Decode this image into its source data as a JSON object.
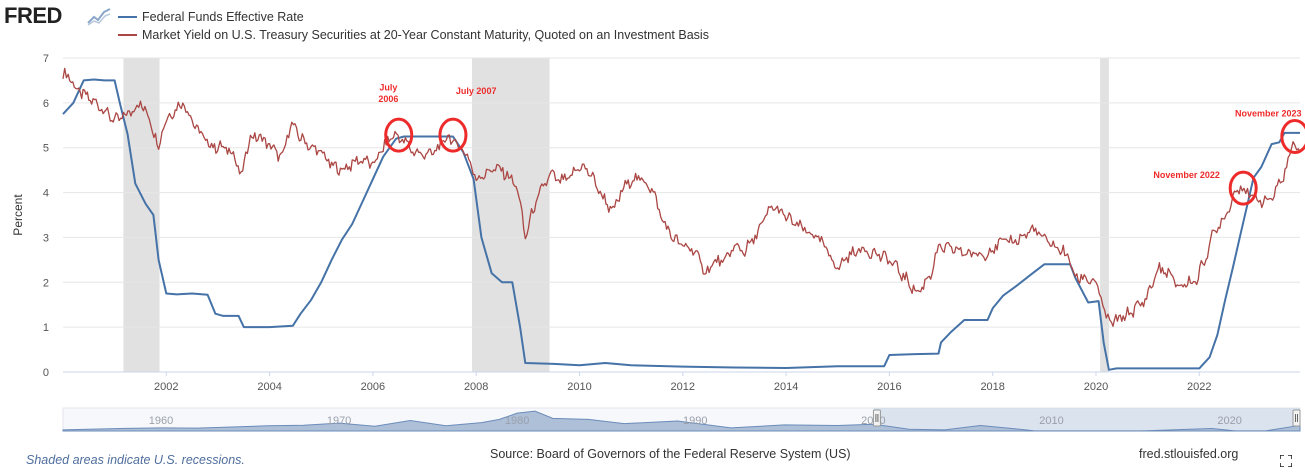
{
  "header": {
    "logo_text": "FRED",
    "logo_icon": "chart-trend-icon"
  },
  "footer": {
    "note": "Shaded areas indicate U.S. recessions.",
    "source": "Source: Board of Governors of the Federal Reserve System (US)",
    "url": "fred.stlouisfed.org",
    "fullscreen_icon": "fullscreen-icon"
  },
  "colors": {
    "fedfunds": "#4572a7",
    "treasury": "#aa4643",
    "recession": "#e1e1e1",
    "annotation": "#ee2b2b",
    "navigator_fill": "#c4d2e6",
    "navigator_line": "#6b8cba"
  },
  "chart_data": {
    "type": "line",
    "title": "",
    "xlabel": "",
    "ylabel": "Percent",
    "xlim": [
      2000.0,
      2023.95
    ],
    "ylim": [
      0,
      7
    ],
    "yticks": [
      "0",
      "1",
      "2",
      "3",
      "4",
      "5",
      "6",
      "7"
    ],
    "xticks": [
      "2002",
      "2004",
      "2006",
      "2008",
      "2010",
      "2012",
      "2014",
      "2016",
      "2018",
      "2020",
      "2022"
    ],
    "grid": true,
    "legend_position": "top-left",
    "recessions": [
      [
        2001.17,
        2001.87
      ],
      [
        2007.92,
        2009.42
      ],
      [
        2020.08,
        2020.25
      ]
    ],
    "series": [
      {
        "name": "Federal Funds Effective Rate",
        "color": "#4572a7",
        "points": [
          [
            2000.0,
            5.75
          ],
          [
            2000.2,
            6.0
          ],
          [
            2000.4,
            6.5
          ],
          [
            2000.6,
            6.52
          ],
          [
            2000.8,
            6.5
          ],
          [
            2001.0,
            6.5
          ],
          [
            2001.1,
            6.0
          ],
          [
            2001.25,
            5.3
          ],
          [
            2001.4,
            4.2
          ],
          [
            2001.6,
            3.75
          ],
          [
            2001.75,
            3.5
          ],
          [
            2001.85,
            2.5
          ],
          [
            2002.0,
            1.75
          ],
          [
            2002.2,
            1.73
          ],
          [
            2002.5,
            1.75
          ],
          [
            2002.8,
            1.72
          ],
          [
            2002.95,
            1.3
          ],
          [
            2003.1,
            1.25
          ],
          [
            2003.4,
            1.25
          ],
          [
            2003.5,
            1.0
          ],
          [
            2003.8,
            1.0
          ],
          [
            2004.0,
            1.0
          ],
          [
            2004.45,
            1.03
          ],
          [
            2004.6,
            1.3
          ],
          [
            2004.8,
            1.6
          ],
          [
            2005.0,
            2.0
          ],
          [
            2005.2,
            2.5
          ],
          [
            2005.4,
            2.95
          ],
          [
            2005.6,
            3.3
          ],
          [
            2005.8,
            3.8
          ],
          [
            2006.0,
            4.3
          ],
          [
            2006.2,
            4.8
          ],
          [
            2006.45,
            5.2
          ],
          [
            2006.6,
            5.25
          ],
          [
            2007.0,
            5.25
          ],
          [
            2007.55,
            5.25
          ],
          [
            2007.75,
            4.9
          ],
          [
            2007.95,
            4.3
          ],
          [
            2008.1,
            3.0
          ],
          [
            2008.3,
            2.2
          ],
          [
            2008.5,
            2.0
          ],
          [
            2008.7,
            2.0
          ],
          [
            2008.85,
            1.0
          ],
          [
            2008.95,
            0.2
          ],
          [
            2009.5,
            0.18
          ],
          [
            2010.0,
            0.15
          ],
          [
            2010.5,
            0.2
          ],
          [
            2011.0,
            0.15
          ],
          [
            2012.0,
            0.12
          ],
          [
            2013.0,
            0.1
          ],
          [
            2014.0,
            0.09
          ],
          [
            2015.0,
            0.13
          ],
          [
            2015.9,
            0.13
          ],
          [
            2016.0,
            0.38
          ],
          [
            2016.5,
            0.4
          ],
          [
            2016.95,
            0.41
          ],
          [
            2017.0,
            0.66
          ],
          [
            2017.2,
            0.9
          ],
          [
            2017.45,
            1.16
          ],
          [
            2017.9,
            1.16
          ],
          [
            2018.0,
            1.42
          ],
          [
            2018.2,
            1.7
          ],
          [
            2018.45,
            1.91
          ],
          [
            2018.75,
            2.18
          ],
          [
            2019.0,
            2.4
          ],
          [
            2019.5,
            2.4
          ],
          [
            2019.6,
            2.1
          ],
          [
            2019.85,
            1.55
          ],
          [
            2020.05,
            1.58
          ],
          [
            2020.15,
            0.65
          ],
          [
            2020.25,
            0.05
          ],
          [
            2020.4,
            0.08
          ],
          [
            2021.0,
            0.08
          ],
          [
            2021.5,
            0.08
          ],
          [
            2022.0,
            0.08
          ],
          [
            2022.2,
            0.33
          ],
          [
            2022.35,
            0.83
          ],
          [
            2022.5,
            1.6
          ],
          [
            2022.65,
            2.33
          ],
          [
            2022.8,
            3.08
          ],
          [
            2022.95,
            3.83
          ],
          [
            2023.05,
            4.33
          ],
          [
            2023.2,
            4.57
          ],
          [
            2023.4,
            5.08
          ],
          [
            2023.55,
            5.12
          ],
          [
            2023.65,
            5.33
          ],
          [
            2023.95,
            5.33
          ]
        ]
      },
      {
        "name": "Market Yield on U.S. Treasury Securities at 20-Year Constant Maturity, Quoted on an Investment Basis",
        "color": "#aa4643",
        "points": [
          [
            2000.0,
            6.6
          ],
          [
            2000.1,
            6.65
          ],
          [
            2000.25,
            6.3
          ],
          [
            2000.5,
            6.1
          ],
          [
            2000.75,
            5.9
          ],
          [
            2001.0,
            5.6
          ],
          [
            2001.2,
            5.7
          ],
          [
            2001.4,
            5.9
          ],
          [
            2001.5,
            6.0
          ],
          [
            2001.7,
            5.6
          ],
          [
            2001.85,
            5.0
          ],
          [
            2001.95,
            5.55
          ],
          [
            2002.2,
            5.9
          ],
          [
            2002.35,
            6.0
          ],
          [
            2002.5,
            5.6
          ],
          [
            2002.7,
            5.25
          ],
          [
            2002.85,
            5.05
          ],
          [
            2003.1,
            5.0
          ],
          [
            2003.3,
            4.9
          ],
          [
            2003.45,
            4.3
          ],
          [
            2003.6,
            5.2
          ],
          [
            2003.8,
            5.25
          ],
          [
            2004.0,
            5.05
          ],
          [
            2004.25,
            4.75
          ],
          [
            2004.4,
            5.55
          ],
          [
            2004.55,
            5.3
          ],
          [
            2004.8,
            5.0
          ],
          [
            2005.0,
            4.9
          ],
          [
            2005.2,
            4.6
          ],
          [
            2005.4,
            4.5
          ],
          [
            2005.6,
            4.65
          ],
          [
            2005.8,
            4.75
          ],
          [
            2006.0,
            4.6
          ],
          [
            2006.2,
            5.0
          ],
          [
            2006.4,
            5.3
          ],
          [
            2006.6,
            5.15
          ],
          [
            2006.8,
            4.9
          ],
          [
            2007.0,
            4.85
          ],
          [
            2007.2,
            4.9
          ],
          [
            2007.45,
            5.25
          ],
          [
            2007.6,
            5.1
          ],
          [
            2007.8,
            4.9
          ],
          [
            2008.0,
            4.3
          ],
          [
            2008.2,
            4.45
          ],
          [
            2008.4,
            4.55
          ],
          [
            2008.6,
            4.4
          ],
          [
            2008.8,
            4.1
          ],
          [
            2008.95,
            3.0
          ],
          [
            2009.1,
            3.6
          ],
          [
            2009.3,
            4.15
          ],
          [
            2009.45,
            4.4
          ],
          [
            2009.6,
            4.25
          ],
          [
            2009.8,
            4.3
          ],
          [
            2010.0,
            4.6
          ],
          [
            2010.2,
            4.45
          ],
          [
            2010.4,
            4.0
          ],
          [
            2010.65,
            3.55
          ],
          [
            2010.8,
            4.0
          ],
          [
            2011.0,
            4.3
          ],
          [
            2011.2,
            4.3
          ],
          [
            2011.4,
            4.1
          ],
          [
            2011.6,
            3.4
          ],
          [
            2011.8,
            3.0
          ],
          [
            2012.0,
            2.8
          ],
          [
            2012.2,
            2.75
          ],
          [
            2012.45,
            2.2
          ],
          [
            2012.6,
            2.45
          ],
          [
            2012.8,
            2.45
          ],
          [
            2013.0,
            2.8
          ],
          [
            2013.2,
            2.7
          ],
          [
            2013.4,
            3.0
          ],
          [
            2013.6,
            3.45
          ],
          [
            2013.75,
            3.7
          ],
          [
            2014.0,
            3.45
          ],
          [
            2014.3,
            3.2
          ],
          [
            2014.6,
            3.0
          ],
          [
            2014.8,
            2.7
          ],
          [
            2015.0,
            2.3
          ],
          [
            2015.2,
            2.6
          ],
          [
            2015.5,
            2.75
          ],
          [
            2015.8,
            2.6
          ],
          [
            2016.0,
            2.5
          ],
          [
            2016.3,
            2.1
          ],
          [
            2016.55,
            1.75
          ],
          [
            2016.8,
            2.2
          ],
          [
            2016.95,
            2.75
          ],
          [
            2017.2,
            2.75
          ],
          [
            2017.5,
            2.65
          ],
          [
            2017.8,
            2.6
          ],
          [
            2018.0,
            2.75
          ],
          [
            2018.2,
            2.9
          ],
          [
            2018.5,
            2.95
          ],
          [
            2018.8,
            3.2
          ],
          [
            2018.95,
            3.0
          ],
          [
            2019.2,
            2.8
          ],
          [
            2019.45,
            2.6
          ],
          [
            2019.6,
            2.1
          ],
          [
            2019.8,
            2.1
          ],
          [
            2020.0,
            2.0
          ],
          [
            2020.1,
            1.6
          ],
          [
            2020.2,
            1.2
          ],
          [
            2020.3,
            1.1
          ],
          [
            2020.5,
            1.2
          ],
          [
            2020.75,
            1.4
          ],
          [
            2020.95,
            1.6
          ],
          [
            2021.1,
            2.0
          ],
          [
            2021.2,
            2.3
          ],
          [
            2021.4,
            2.2
          ],
          [
            2021.6,
            1.9
          ],
          [
            2021.8,
            2.0
          ],
          [
            2021.95,
            2.05
          ],
          [
            2022.1,
            2.5
          ],
          [
            2022.25,
            3.0
          ],
          [
            2022.4,
            3.3
          ],
          [
            2022.55,
            3.6
          ],
          [
            2022.65,
            3.9
          ],
          [
            2022.8,
            4.2
          ],
          [
            2022.9,
            4.0
          ],
          [
            2023.0,
            3.9
          ],
          [
            2023.15,
            3.85
          ],
          [
            2023.3,
            3.8
          ],
          [
            2023.45,
            3.95
          ],
          [
            2023.6,
            4.3
          ],
          [
            2023.75,
            4.8
          ],
          [
            2023.85,
            5.2
          ],
          [
            2023.95,
            4.9
          ]
        ]
      }
    ],
    "annotations": [
      {
        "label": "July",
        "label2": "2006",
        "x": 2006.5,
        "y": 5.28
      },
      {
        "label": "July 2007",
        "label2": "",
        "x": 2007.55,
        "y": 5.28
      },
      {
        "label": "November 2022",
        "label2": "",
        "x": 2022.85,
        "y": 4.1
      },
      {
        "label": "November 2023",
        "label2": "",
        "x": 2023.85,
        "y": 5.25
      }
    ],
    "navigator": {
      "xticks": [
        "1960",
        "1970",
        "1980",
        "1990",
        "2000",
        "2010",
        "2020"
      ],
      "range_start": 2000.0,
      "range_end": 2023.95,
      "x_start": 1954.5,
      "x_end": 2023.95
    }
  }
}
